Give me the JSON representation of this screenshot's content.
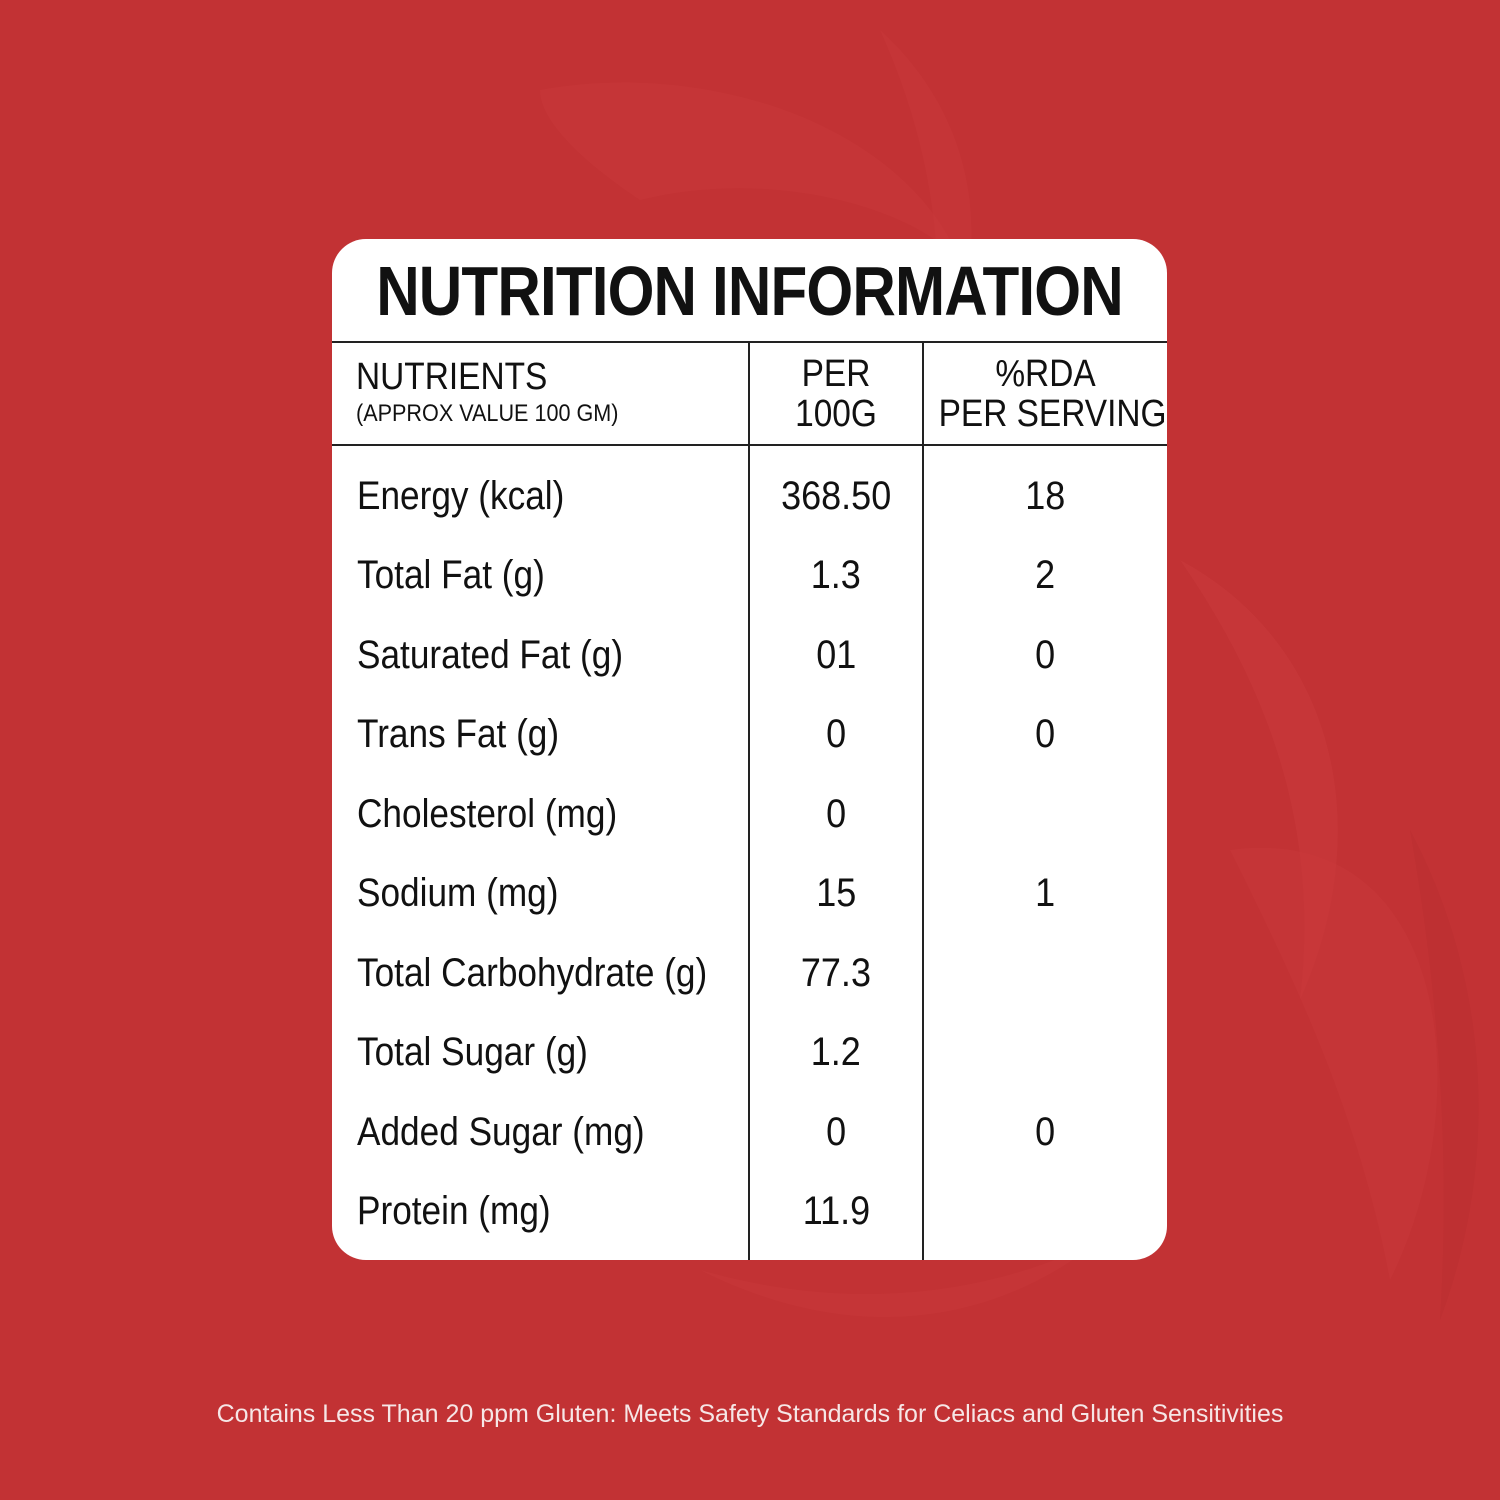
{
  "colors": {
    "background": "#c23234",
    "panel": "#ffffff",
    "text": "#111111",
    "footer_text": "#f6e6e6"
  },
  "title": "NUTRITION INFORMATION",
  "header": {
    "nutrients": "NUTRIENTS",
    "nutrients_sub": "(APPROX VALUE 100 GM)",
    "per_line1": "PER",
    "per_line2": "100G",
    "rda_line1": "%RDA",
    "rda_line2": "PER SERVING"
  },
  "rows": [
    {
      "name": "Energy (kcal)",
      "per100g": "368.50",
      "rda": "18"
    },
    {
      "name": "Total Fat (g)",
      "per100g": "1.3",
      "rda": "2"
    },
    {
      "name": "Saturated Fat (g)",
      "per100g": "01",
      "rda": "0"
    },
    {
      "name": "Trans Fat (g)",
      "per100g": "0",
      "rda": "0"
    },
    {
      "name": "Cholesterol (mg)",
      "per100g": "0",
      "rda": ""
    },
    {
      "name": "Sodium (mg)",
      "per100g": "15",
      "rda": "1"
    },
    {
      "name": "Total Carbohydrate (g)",
      "per100g": "77.3",
      "rda": ""
    },
    {
      "name": "Total Sugar (g)",
      "per100g": "1.2",
      "rda": ""
    },
    {
      "name": "Added Sugar (mg)",
      "per100g": "0",
      "rda": "0"
    },
    {
      "name": "Protein (mg)",
      "per100g": "11.9",
      "rda": ""
    }
  ],
  "footer": "Contains Less Than 20 ppm Gluten: Meets Safety Standards for Celiacs and Gluten Sensitivities"
}
